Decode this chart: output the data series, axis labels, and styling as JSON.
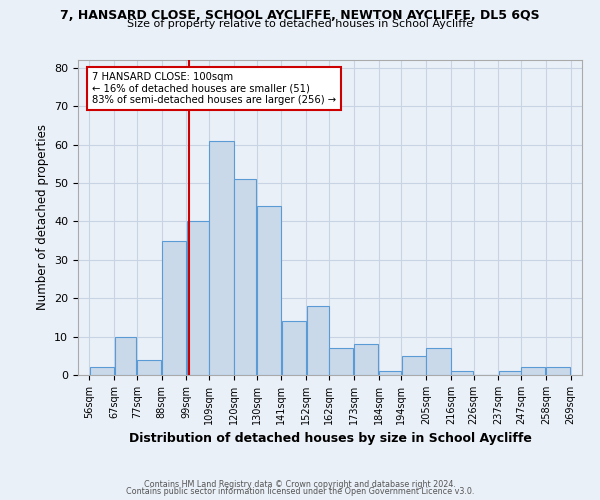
{
  "title": "7, HANSARD CLOSE, SCHOOL AYCLIFFE, NEWTON AYCLIFFE, DL5 6QS",
  "subtitle": "Size of property relative to detached houses in School Aycliffe",
  "xlabel": "Distribution of detached houses by size in School Aycliffe",
  "ylabel": "Number of detached properties",
  "bin_edges": [
    56,
    67,
    77,
    88,
    99,
    109,
    120,
    130,
    141,
    152,
    162,
    173,
    184,
    194,
    205,
    216,
    226,
    237,
    247,
    258,
    269
  ],
  "counts": [
    2,
    10,
    4,
    35,
    40,
    61,
    51,
    44,
    14,
    18,
    7,
    8,
    1,
    5,
    7,
    1,
    0,
    1,
    2,
    2
  ],
  "bar_facecolor": "#c9d9ea",
  "bar_edgecolor": "#5b9bd5",
  "vline_x": 100,
  "vline_color": "#cc0000",
  "annotation_box_text": "7 HANSARD CLOSE: 100sqm\n← 16% of detached houses are smaller (51)\n83% of semi-detached houses are larger (256) →",
  "annotation_box_color": "#cc0000",
  "ylim": [
    0,
    82
  ],
  "yticks": [
    0,
    10,
    20,
    30,
    40,
    50,
    60,
    70,
    80
  ],
  "grid_color": "#c8d4e3",
  "background_color": "#eaf0f8",
  "footer_line1": "Contains HM Land Registry data © Crown copyright and database right 2024.",
  "footer_line2": "Contains public sector information licensed under the Open Government Licence v3.0."
}
